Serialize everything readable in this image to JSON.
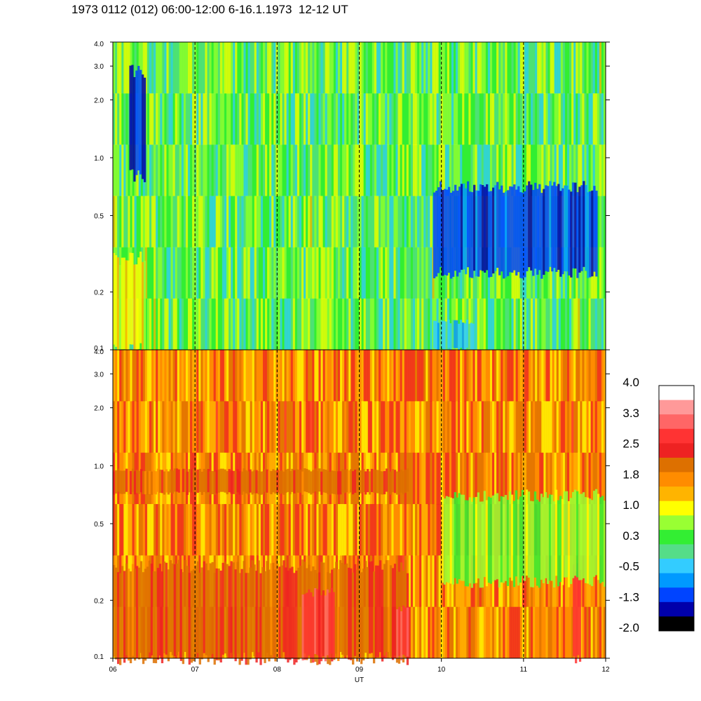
{
  "title": "1973 0112 (012) 06:00-12:00 6-16.1.1973  12-12 UT",
  "chart_data": {
    "type": "heatmap",
    "title": "1973 0112 (012) 06:00-12:00 6-16.1.1973  12-12 UT",
    "xlabel": "UT",
    "x_ticks": [
      "06",
      "07",
      "08",
      "09",
      "10",
      "11",
      "12"
    ],
    "xlim": [
      6,
      12
    ],
    "y_scale": "log",
    "panels": [
      {
        "name": "upper",
        "ylim": [
          0.1,
          4.0
        ],
        "y_ticks": [
          {
            "value": 0.1,
            "label": "0.1"
          },
          {
            "value": 0.2,
            "label": "0.2"
          },
          {
            "value": 0.5,
            "label": "0.5"
          },
          {
            "value": 1.0,
            "label": "1.0"
          },
          {
            "value": 2.0,
            "label": "2.0"
          },
          {
            "value": 3.0,
            "label": "3.0"
          },
          {
            "value": 4.0,
            "label": "4.0"
          }
        ],
        "dominant_level": "0.3",
        "features": [
          {
            "description_level": "-1.3",
            "x_range": [
              9.9,
              11.9
            ],
            "y_range": [
              0.25,
              0.7
            ]
          },
          {
            "description_level": "-1.3",
            "x_range": [
              6.2,
              6.4
            ],
            "y_range": [
              0.8,
              2.8
            ]
          },
          {
            "description_level": "-0.5",
            "x_range": [
              9.9,
              10.4
            ],
            "y_range": [
              0.1,
              0.14
            ]
          },
          {
            "description_level": "1.0",
            "x_range": [
              6.0,
              6.4
            ],
            "y_range": [
              0.1,
              0.3
            ]
          }
        ]
      },
      {
        "name": "lower",
        "ylim": [
          0.1,
          4.0
        ],
        "y_ticks": [
          {
            "value": 0.1,
            "label": "0.1"
          },
          {
            "value": 0.2,
            "label": "0.2"
          },
          {
            "value": 0.5,
            "label": "0.5"
          },
          {
            "value": 1.0,
            "label": "1.0"
          },
          {
            "value": 2.0,
            "label": "2.0"
          },
          {
            "value": 3.0,
            "label": "3.0"
          },
          {
            "value": 4.0,
            "label": "4.0"
          }
        ],
        "dominant_level": "1.8",
        "features": [
          {
            "description_level": "2.2",
            "x_range": [
              6.0,
              9.6
            ],
            "y_range": [
              0.72,
              0.95
            ]
          },
          {
            "description_level": "2.2",
            "x_range": [
              6.0,
              9.6
            ],
            "y_range": [
              0.1,
              0.3
            ]
          },
          {
            "description_level": "2.9",
            "x_range": [
              8.3,
              8.7
            ],
            "y_range": [
              0.1,
              0.22
            ]
          },
          {
            "description_level": "2.9",
            "x_range": [
              9.45,
              9.6
            ],
            "y_range": [
              0.1,
              0.18
            ]
          },
          {
            "description_level": "2.9",
            "x_range": [
              11.6,
              11.7
            ],
            "y_range": [
              0.1,
              0.3
            ]
          },
          {
            "description_level": "0.6",
            "x_range": [
              10.0,
              12.0
            ],
            "y_range": [
              0.25,
              0.7
            ]
          }
        ]
      }
    ],
    "dashed_lines_x": [
      7,
      8,
      9,
      10,
      11
    ],
    "colorbar": {
      "labels": [
        "4.0",
        "3.3",
        "2.5",
        "1.8",
        "1.0",
        "0.3",
        "-0.5",
        "-1.3",
        "-2.0"
      ],
      "colors": [
        "#ffffff",
        "#ff9999",
        "#ff6666",
        "#ff3333",
        "#ee2222",
        "#dd7000",
        "#ff8c00",
        "#ffb400",
        "#ffff00",
        "#99ff33",
        "#33ee33",
        "#55dd88",
        "#33ccff",
        "#0099ff",
        "#0044ff",
        "#0000aa",
        "#000000"
      ]
    }
  }
}
